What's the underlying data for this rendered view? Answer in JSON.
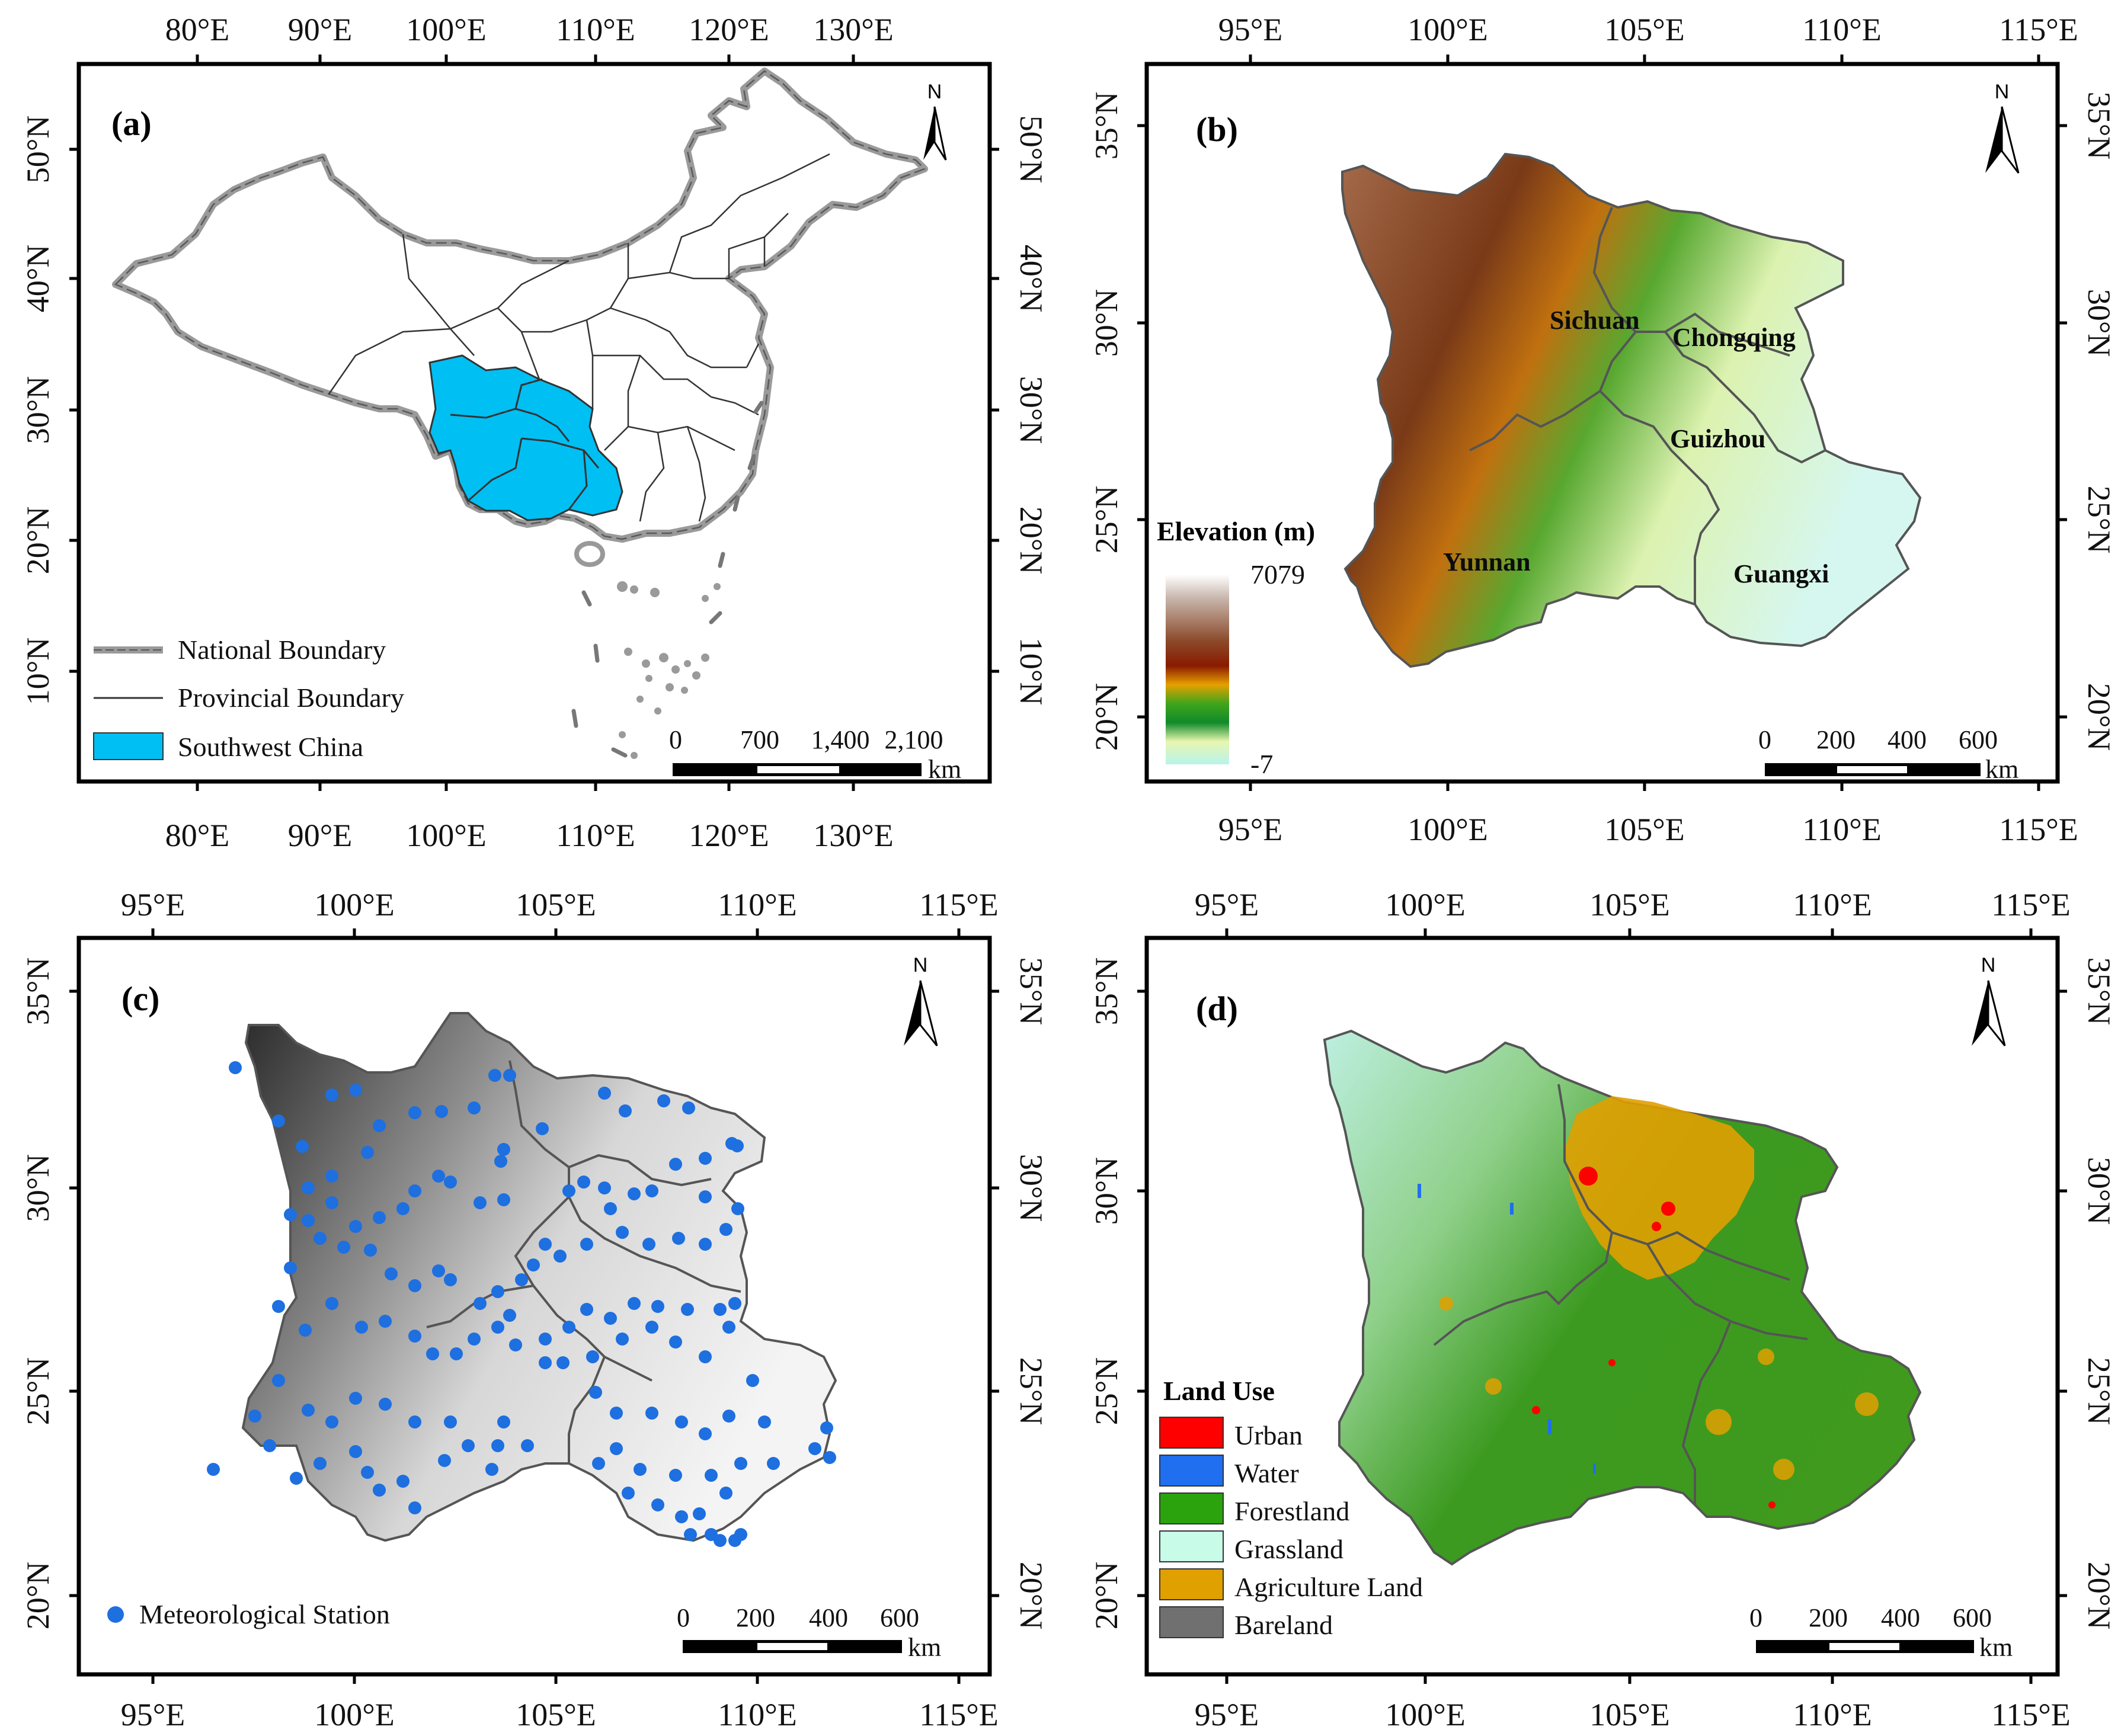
{
  "panels": {
    "a": {
      "label": "(a)",
      "top_lon": [
        "80°E",
        "90°E",
        "100°E",
        "110°E",
        "120°E",
        "130°E"
      ],
      "bottom_lon": [
        "80°E",
        "90°E",
        "100°E",
        "110°E",
        "120°E",
        "130°E"
      ],
      "left_lat": [
        "50°N",
        "40°N",
        "30°N",
        "20°N",
        "10°N"
      ],
      "right_lat": [
        "50°N",
        "40°N",
        "30°N",
        "20°N",
        "10°N"
      ],
      "north": "N",
      "legend": {
        "national": "National Boundary",
        "provincial": "Provincial Boundary",
        "southwest": "Southwest China"
      },
      "scale": {
        "ticks": [
          "0",
          "700",
          "1,400",
          "2,100"
        ],
        "unit": "km"
      },
      "colors": {
        "southwest": "#00bff3",
        "national": "#9a9a9a"
      }
    },
    "b": {
      "label": "(b)",
      "top_lon": [
        "95°E",
        "100°E",
        "105°E",
        "110°E",
        "115°E"
      ],
      "bottom_lon": [
        "95°E",
        "100°E",
        "105°E",
        "110°E",
        "115°E"
      ],
      "left_lat": [
        "35°N",
        "30°N",
        "25°N",
        "20°N"
      ],
      "right_lat": [
        "35°N",
        "30°N",
        "25°N",
        "20°N"
      ],
      "north": "N",
      "regions": {
        "sichuan": "Sichuan",
        "chongqing": "Chongqing",
        "guizhou": "Guizhou",
        "yunnan": "Yunnan",
        "guangxi": "Guangxi"
      },
      "elevation_title": "Elevation (m)",
      "elevation_max": "7079",
      "elevation_min": "-7",
      "scale": {
        "ticks": [
          "0",
          "200",
          "400",
          "600"
        ],
        "unit": "km"
      }
    },
    "c": {
      "label": "(c)",
      "top_lon": [
        "95°E",
        "100°E",
        "105°E",
        "110°E",
        "115°E"
      ],
      "bottom_lon": [
        "95°E",
        "100°E",
        "105°E",
        "110°E",
        "115°E"
      ],
      "left_lat": [
        "35°N",
        "30°N",
        "25°N",
        "20°N"
      ],
      "right_lat": [
        "35°N",
        "30°N",
        "25°N",
        "20°N"
      ],
      "north": "N",
      "legend": {
        "station": "Meteorological Station"
      },
      "scale": {
        "ticks": [
          "0",
          "200",
          "400",
          "600"
        ],
        "unit": "km"
      },
      "colors": {
        "station": "#1e6fe0"
      }
    },
    "d": {
      "label": "(d)",
      "top_lon": [
        "95°E",
        "100°E",
        "105°E",
        "110°E",
        "115°E"
      ],
      "bottom_lon": [
        "95°E",
        "100°E",
        "105°E",
        "110°E",
        "115°E"
      ],
      "left_lat": [
        "35°N",
        "30°N",
        "25°N",
        "20°N"
      ],
      "right_lat": [
        "35°N",
        "30°N",
        "25°N",
        "20°N"
      ],
      "north": "N",
      "legend_title": "Land Use",
      "classes": [
        {
          "name": "Urban",
          "color": "#ff0000"
        },
        {
          "name": "Water",
          "color": "#1f6ff0"
        },
        {
          "name": "Forestland",
          "color": "#2aa30d"
        },
        {
          "name": "Grassland",
          "color": "#c8fbe8"
        },
        {
          "name": "Agriculture Land",
          "color": "#e0a000"
        },
        {
          "name": "Bareland",
          "color": "#707070"
        }
      ],
      "scale": {
        "ticks": [
          "0",
          "200",
          "400",
          "600"
        ],
        "unit": "km"
      }
    }
  }
}
